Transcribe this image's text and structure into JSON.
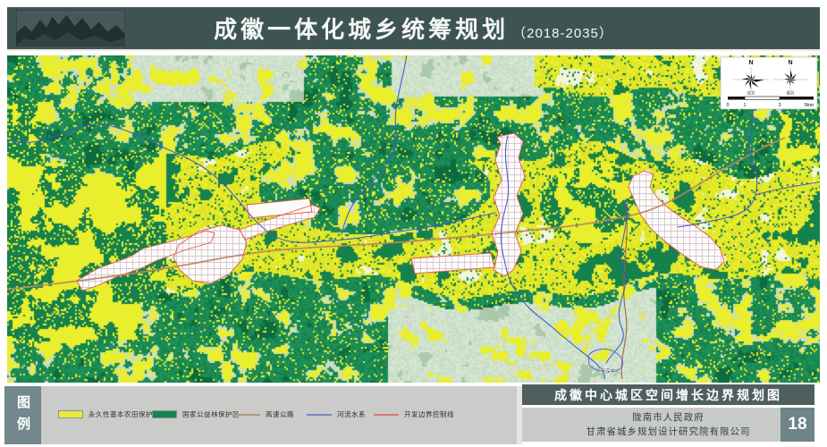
{
  "header": {
    "title": "成徽一体化城乡统筹规划",
    "subtitle": "（2018-2035）"
  },
  "map": {
    "compass": {
      "north1": "N",
      "north2": "N",
      "rose1_caption": "成县",
      "rose2_caption": "徽县",
      "scale_ticks": [
        "0",
        "1",
        "3",
        "5km"
      ]
    },
    "annotations": [
      {
        "text": "至汉中"
      }
    ]
  },
  "legend": {
    "title": "图例",
    "items": [
      {
        "label": "永久性基本农田保护区",
        "type": "swatch",
        "color": "#e8ea38"
      },
      {
        "label": "国家公益林保护区",
        "type": "swatch",
        "color": "#17844e"
      },
      {
        "label": "高速公路",
        "type": "line",
        "color": "#c4ad97"
      },
      {
        "label": "河流水系",
        "type": "line",
        "color": "#8b9be2"
      },
      {
        "label": "开发边界控制线",
        "type": "line",
        "color": "#ee8e83"
      }
    ]
  },
  "footer": {
    "map_title": "成徽中心城区空间增长边界规划图",
    "credit_line1": "陇南市人民政府",
    "credit_line2": "甘肃省城乡规划设计研究院有限公司",
    "page_number": "18"
  },
  "colors": {
    "header_bg": "#3e5452",
    "panel_slate": "#73888d",
    "title_bar": "#4e5f5e",
    "footer_gray": "#c7cac7",
    "farmland_yellow": "#e9ee2d",
    "forest_green": "#15814d",
    "haze_sage": "#c9ddc6",
    "river_blue": "#3d55cc",
    "highway_tan": "#bf8663",
    "boundary_red": "#e0564a"
  }
}
